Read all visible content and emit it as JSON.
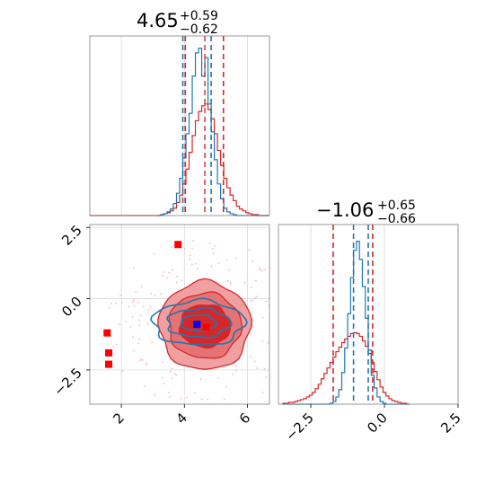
{
  "chart_data": {
    "type": "corner",
    "colors": {
      "blue": "#1f77b4",
      "red": "#d62728",
      "marker_red": "#ff0000",
      "marker_blue": "#0000ff"
    },
    "panel_x_hist": {
      "title": {
        "median": "4.65",
        "plus": "+0.59",
        "minus": "−0.62"
      },
      "xlim": [
        1.0,
        6.7
      ],
      "quantiles_blue": [
        3.95,
        4.85
      ],
      "quantiles_red": [
        4.03,
        5.24
      ],
      "bins": [
        3.2,
        3.3,
        3.4,
        3.5,
        3.6,
        3.7,
        3.8,
        3.9,
        4.0,
        4.1,
        4.2,
        4.3,
        4.4,
        4.5,
        4.6,
        4.7,
        4.8,
        4.9,
        5.0,
        5.1,
        5.2,
        5.3,
        5.4,
        5.5,
        5.6,
        5.7,
        5.8,
        5.9,
        6.0,
        6.1,
        6.2,
        6.3,
        6.4,
        6.5,
        6.6
      ],
      "blue_counts": [
        0,
        1,
        2,
        4,
        7,
        13,
        24,
        40,
        62,
        88,
        110,
        150,
        175,
        180,
        150,
        170,
        120,
        90,
        60,
        34,
        18,
        8,
        4,
        2,
        1,
        0,
        0,
        0,
        0,
        0,
        0,
        0,
        0,
        0,
        0
      ],
      "red_counts": [
        0,
        1,
        2,
        3,
        5,
        8,
        14,
        22,
        34,
        50,
        68,
        86,
        102,
        112,
        118,
        120,
        114,
        104,
        88,
        70,
        54,
        40,
        30,
        22,
        16,
        10,
        7,
        5,
        3,
        2,
        1,
        1,
        0,
        0,
        0
      ]
    },
    "panel_y_hist": {
      "title": {
        "median": "−1.06",
        "plus": "+0.65",
        "minus": "−0.66"
      },
      "xlim": [
        -3.6,
        2.5
      ],
      "xticks": [
        "−2.5",
        "0.0",
        "2.5"
      ],
      "quantiles_blue": [
        -1.05,
        -0.55
      ],
      "quantiles_red": [
        -1.74,
        -0.4
      ],
      "bins": [
        -3.4,
        -3.3,
        -3.2,
        -3.1,
        -3.0,
        -2.9,
        -2.8,
        -2.7,
        -2.6,
        -2.5,
        -2.4,
        -2.3,
        -2.2,
        -2.1,
        -2.0,
        -1.9,
        -1.8,
        -1.7,
        -1.6,
        -1.5,
        -1.4,
        -1.3,
        -1.2,
        -1.1,
        -1.0,
        -0.9,
        -0.8,
        -0.7,
        -0.6,
        -0.5,
        -0.4,
        -0.3,
        -0.2,
        -0.1,
        0.0,
        0.1,
        0.2,
        0.3,
        0.4,
        0.5,
        0.6,
        0.7,
        0.8
      ],
      "blue_counts": [
        0,
        0,
        0,
        0,
        0,
        0,
        0,
        0,
        0,
        0,
        0,
        0,
        0,
        0,
        0,
        0,
        1,
        3,
        8,
        16,
        35,
        62,
        100,
        140,
        170,
        180,
        160,
        130,
        95,
        60,
        32,
        18,
        8,
        3,
        1,
        0,
        0,
        0,
        0,
        0,
        0,
        0,
        0
      ],
      "red_counts": [
        1,
        1,
        2,
        2,
        3,
        4,
        5,
        6,
        8,
        10,
        13,
        17,
        22,
        28,
        34,
        40,
        46,
        52,
        58,
        63,
        68,
        72,
        75,
        78,
        79,
        78,
        75,
        70,
        64,
        56,
        46,
        36,
        27,
        19,
        13,
        9,
        6,
        4,
        3,
        2,
        1,
        1,
        0
      ]
    },
    "panel_scatter": {
      "xlim": [
        1.0,
        6.7
      ],
      "ylim": [
        -3.7,
        2.6
      ],
      "xticks": [
        "2",
        "4",
        "6"
      ],
      "yticks": [
        "2.5",
        "0.0",
        "−2.5"
      ],
      "red_squares": [
        [
          3.8,
          1.9
        ],
        [
          1.55,
          -1.2
        ],
        [
          1.6,
          -1.9
        ],
        [
          1.6,
          -2.3
        ],
        [
          4.7,
          -1.0
        ]
      ],
      "blue_square": [
        4.4,
        -0.9
      ],
      "red_fill_levels": [
        {
          "cx": 4.65,
          "cy": -0.95,
          "rx": 1.45,
          "ry": 1.55
        },
        {
          "cx": 4.65,
          "cy": -0.95,
          "rx": 1.15,
          "ry": 1.15
        },
        {
          "cx": 4.65,
          "cy": -0.95,
          "rx": 0.8,
          "ry": 0.75
        }
      ],
      "blue_levels": [
        {
          "cx": 4.45,
          "cy": -0.85,
          "rx": 1.45,
          "ry": 0.78
        },
        {
          "cx": 4.45,
          "cy": -0.85,
          "rx": 1.0,
          "ry": 0.5
        },
        {
          "cx": 4.45,
          "cy": -0.85,
          "rx": 0.55,
          "ry": 0.28
        }
      ]
    }
  }
}
